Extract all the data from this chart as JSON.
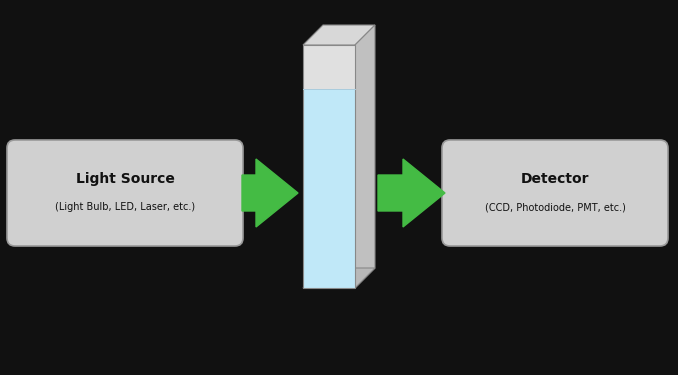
{
  "bg_color": "#111111",
  "box_color": "#d0d0d0",
  "box_edge_color": "#999999",
  "arrow_color": "#44bb44",
  "text_color": "#111111",
  "cuvette_front_color": "#c0e8f8",
  "cuvette_top_color": "#d8d8d8",
  "cuvette_side_color": "#c0c0c0",
  "cuvette_liquid_color": "#b0dcf0",
  "cuvette_air_color": "#e0e0e0",
  "light_source_title": "Light Source",
  "light_source_sub": "(Light Bulb, LED, Laser, etc.)",
  "detector_title": "Detector",
  "detector_sub": "(CCD, Photodiode, PMT, etc.)",
  "fig_width": 6.78,
  "fig_height": 3.75,
  "xlim": [
    0,
    678
  ],
  "ylim": [
    0,
    375
  ]
}
